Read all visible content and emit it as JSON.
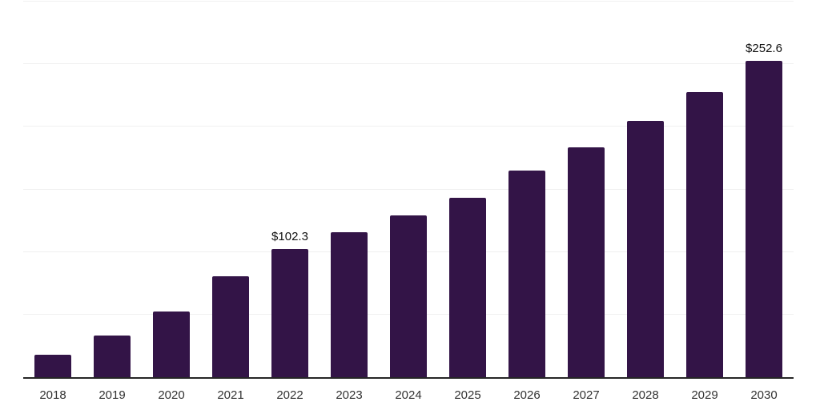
{
  "chart_data": {
    "type": "bar",
    "title": "",
    "xlabel": "",
    "ylabel": "",
    "categories": [
      "2018",
      "2019",
      "2020",
      "2021",
      "2022",
      "2023",
      "2024",
      "2025",
      "2026",
      "2027",
      "2028",
      "2029",
      "2030"
    ],
    "values": [
      17.7,
      33.4,
      52.6,
      80.8,
      102.3,
      116.0,
      129.4,
      143.5,
      164.8,
      183.7,
      204.6,
      227.9,
      252.6
    ],
    "value_labels": [
      {
        "index": 4,
        "text": "$102.3"
      },
      {
        "index": 12,
        "text": "$252.6"
      }
    ],
    "ylim": [
      0,
      300
    ],
    "gridline_step": 50,
    "grid": "horizontal",
    "legend": "none",
    "y_tick_labels_visible": false,
    "bar_color": "#331447",
    "axis_line_color": "#262626",
    "gridline_color": "#f0f0f0",
    "value_label_color": "#111111",
    "tick_label_color": "#333333",
    "background_color": "#ffffff"
  }
}
